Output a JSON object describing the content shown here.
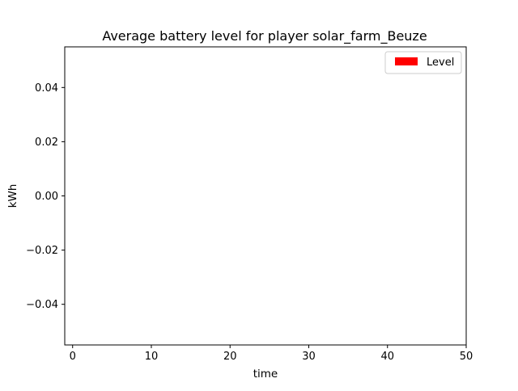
{
  "chart_data": {
    "type": "bar",
    "title": "Average battery level for player solar_farm_Beuze",
    "xlabel": "time",
    "ylabel": "kWh",
    "xlim": [
      -1,
      50
    ],
    "ylim": [
      -0.055,
      0.055
    ],
    "x_ticks": [
      0,
      10,
      20,
      30,
      40,
      50
    ],
    "x_tick_labels": [
      "0",
      "10",
      "20",
      "30",
      "40",
      "50"
    ],
    "y_ticks": [
      0.04,
      0.02,
      0.0,
      -0.02,
      -0.04
    ],
    "y_tick_labels": [
      "0.04",
      "0.02",
      "0.00",
      "−0.02",
      "−0.04"
    ],
    "grid": false,
    "legend_position": "top-right",
    "series": [
      {
        "name": "Level",
        "color": "#ff0000",
        "values": []
      }
    ]
  }
}
